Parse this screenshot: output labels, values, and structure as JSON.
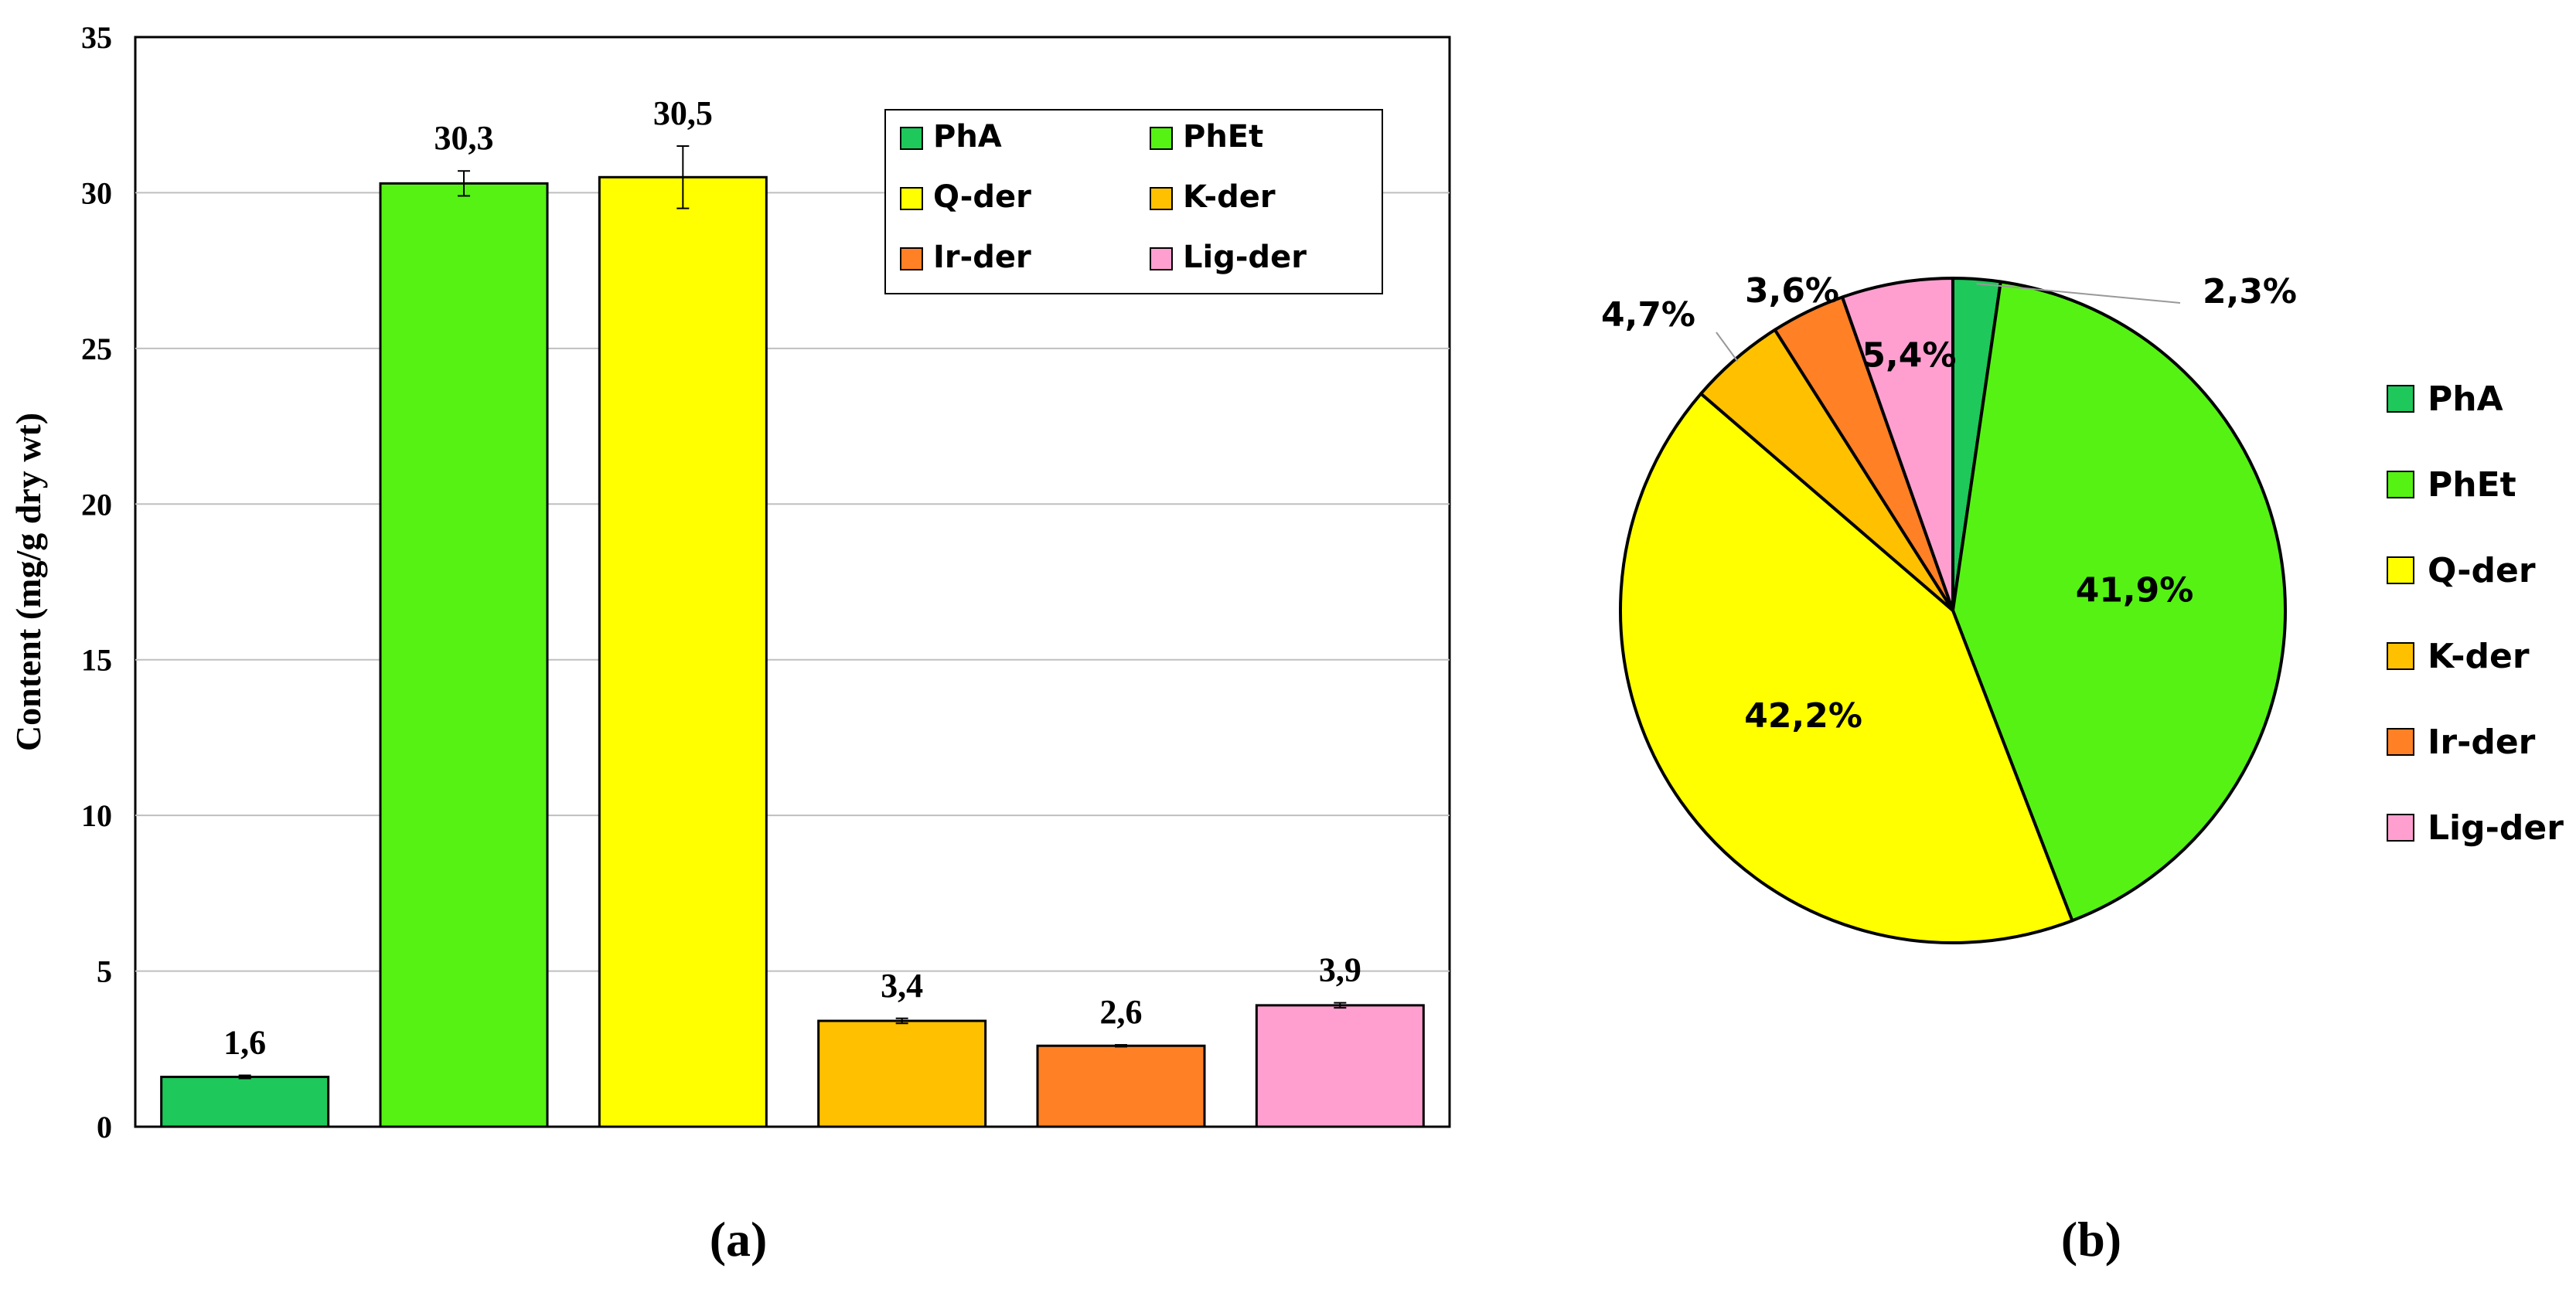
{
  "panel_labels": [
    "(a)",
    "(b)"
  ],
  "chart_data": [
    {
      "type": "bar",
      "title": "",
      "xlabel": "",
      "ylabel": "Content (mg/g dry wt)",
      "ylim": [
        0,
        35
      ],
      "yticks": [
        0,
        5,
        10,
        15,
        20,
        25,
        30,
        35
      ],
      "grid": true,
      "legend_position": "top-right",
      "categories": [
        "PhA",
        "PhEt",
        "Q-der",
        "K-der",
        "Ir-der",
        "Lig-der"
      ],
      "values": [
        1.6,
        30.3,
        30.5,
        3.4,
        2.6,
        3.9
      ],
      "data_labels": [
        "1,6",
        "30,3",
        "30,5",
        "3,4",
        "2,6",
        "3,9"
      ],
      "error": [
        0.05,
        0.4,
        1.0,
        0.08,
        0.03,
        0.08
      ],
      "colors": [
        "#1ec85a",
        "#55f214",
        "#ffff00",
        "#ffc000",
        "#ff8025",
        "#ff9fd0"
      ],
      "legend": [
        "PhA",
        "PhEt",
        "Q-der",
        "K-der",
        "Ir-der",
        "Lig-der"
      ]
    },
    {
      "type": "pie",
      "title": "",
      "legend_position": "right",
      "categories": [
        "PhA",
        "PhEt",
        "Q-der",
        "K-der",
        "Ir-der",
        "Lig-der"
      ],
      "values": [
        2.3,
        41.9,
        42.2,
        4.7,
        3.6,
        5.4
      ],
      "labels": [
        "2,3%",
        "41,9%",
        "42,2%",
        "4,7%",
        "3,6%",
        "5,4%"
      ],
      "colors": [
        "#1ec85a",
        "#55f214",
        "#ffff00",
        "#ffc000",
        "#ff8025",
        "#ff9fd0"
      ],
      "legend": [
        "PhA",
        "PhEt",
        "Q-der",
        "K-der",
        "Ir-der",
        "Lig-der"
      ]
    }
  ]
}
